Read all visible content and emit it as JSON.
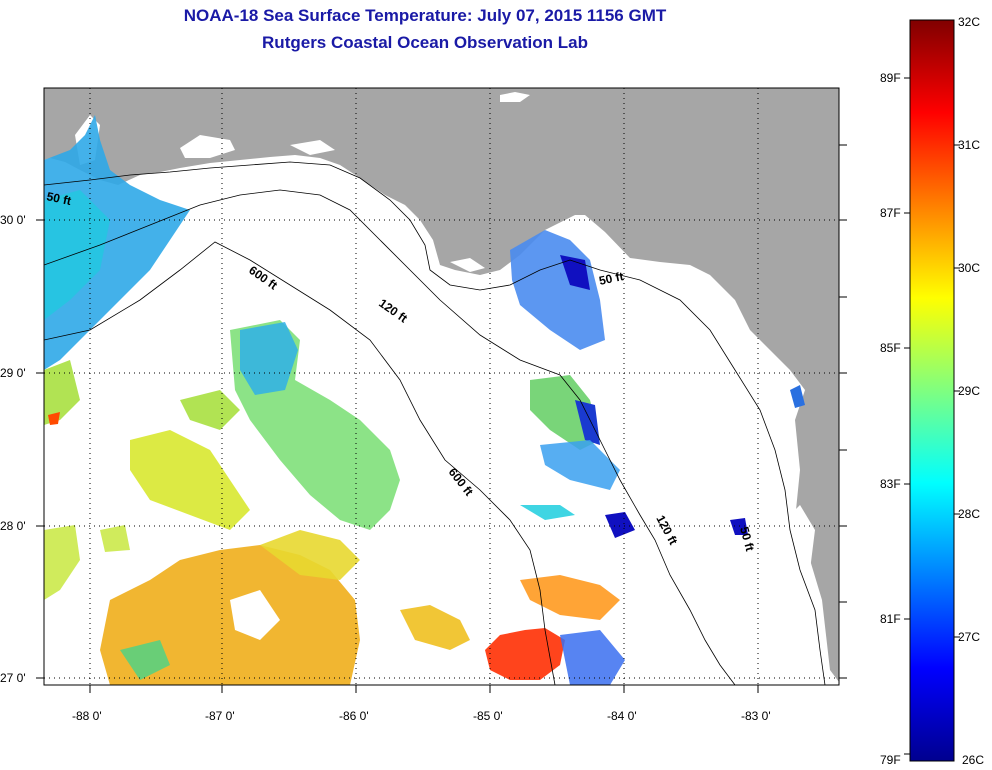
{
  "title": {
    "line1": "NOAA-18 Sea Surface Temperature:  July 07, 2015 1156 GMT",
    "line2": "Rutgers Coastal Ocean Observation Lab"
  },
  "axes": {
    "lon_ticks": [
      "-88 0'",
      "-87 0'",
      "-86 0'",
      "-85 0'",
      "-84 0'",
      "-83 0'"
    ],
    "lat_ticks": [
      "30 0'",
      "29 0'",
      "28 0'",
      "27 0'"
    ]
  },
  "contours": {
    "labels": [
      "50 ft",
      "600 ft",
      "120 ft",
      "50 ft",
      "600 ft",
      "120 ft",
      "50 ft"
    ]
  },
  "colorbar": {
    "celsius": [
      "32C",
      "31C",
      "30C",
      "29C",
      "28C",
      "27C",
      "26C"
    ],
    "fahrenheit": [
      "89F",
      "87F",
      "85F",
      "83F",
      "81F",
      "79F"
    ],
    "range_celsius": [
      26,
      32
    ]
  },
  "colors": {
    "land": "#a6a6a6",
    "water_nodata": "#ffffff",
    "title": "#1a1aa6"
  }
}
